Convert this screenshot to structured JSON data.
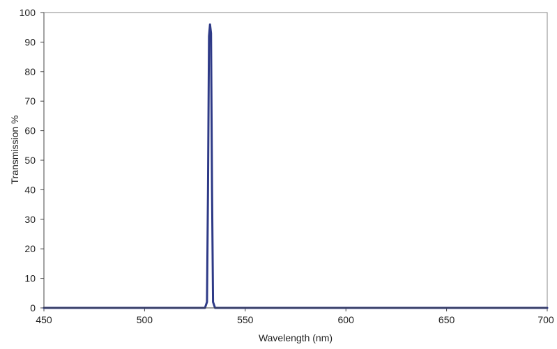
{
  "chart_data": {
    "type": "line",
    "title": "",
    "xlabel": "Wavelength (nm)",
    "ylabel": "Transmission %",
    "xlim": [
      450,
      700
    ],
    "ylim": [
      0,
      100
    ],
    "x_ticks": [
      450,
      500,
      550,
      600,
      650,
      700
    ],
    "y_ticks": [
      0,
      10,
      20,
      30,
      40,
      50,
      60,
      70,
      80,
      90,
      100
    ],
    "grid": false,
    "legend": "none",
    "series": [
      {
        "color": "#2e3a87",
        "x": [
          450,
          530,
          531,
          531.5,
          532,
          532.5,
          533,
          533.5,
          534,
          535,
          700
        ],
        "y": [
          0,
          0,
          2,
          40,
          92,
          96,
          93,
          40,
          2,
          0,
          0
        ]
      }
    ]
  }
}
